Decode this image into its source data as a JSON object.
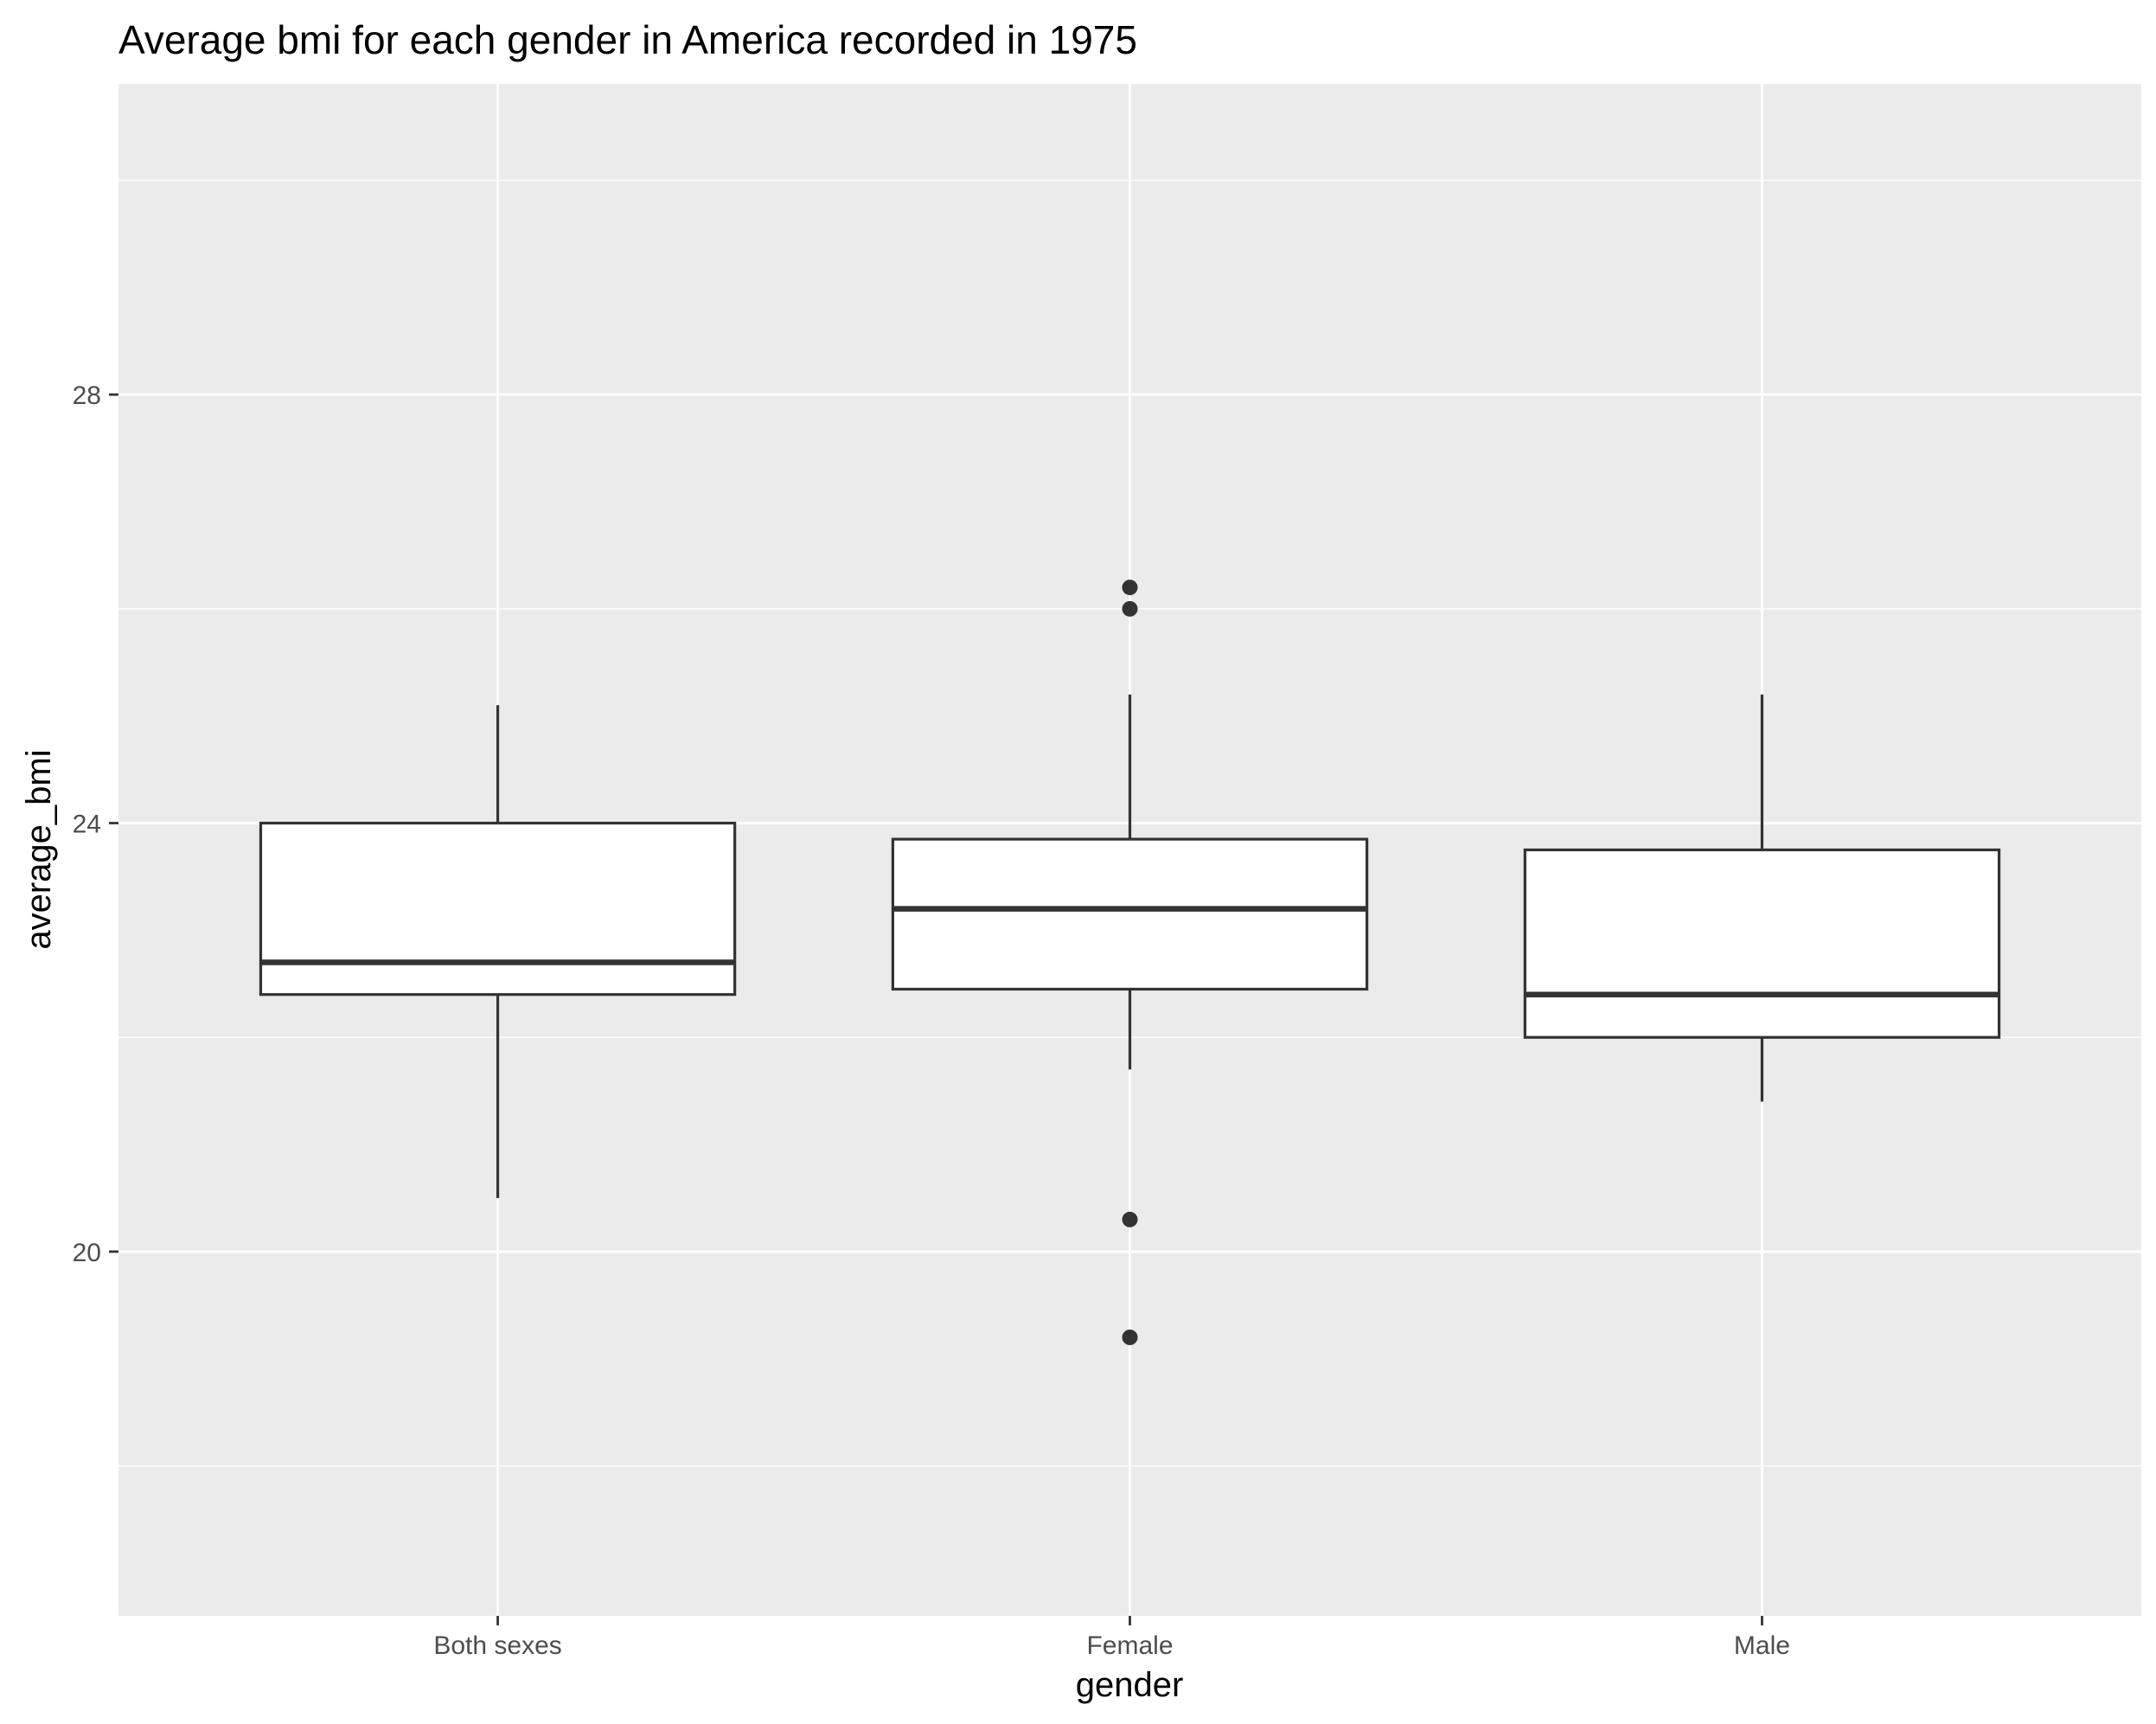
{
  "chart_data": {
    "type": "boxplot",
    "title": "Average bmi for each gender in America recorded in 1975",
    "xlabel": "gender",
    "ylabel": "average_bmi",
    "categories": [
      "Both sexes",
      "Female",
      "Male"
    ],
    "ylim": [
      16.6,
      30.9
    ],
    "yticks": [
      20,
      24,
      28
    ],
    "grid": true,
    "legend": "none",
    "boxes": [
      {
        "category": "Both sexes",
        "whisker_low": 20.5,
        "q1": 22.4,
        "median": 22.7,
        "q3": 24.0,
        "whisker_high": 25.1,
        "outliers": []
      },
      {
        "category": "Female",
        "whisker_low": 21.7,
        "q1": 22.45,
        "median": 23.2,
        "q3": 23.85,
        "whisker_high": 25.2,
        "outliers": [
          26.2,
          26.0,
          20.3,
          19.2
        ]
      },
      {
        "category": "Male",
        "whisker_low": 21.4,
        "q1": 22.0,
        "median": 22.4,
        "q3": 23.75,
        "whisker_high": 25.2,
        "outliers": []
      }
    ],
    "colors": {
      "panel": "#ebebeb",
      "grid": "#ffffff",
      "box_fill": "#ffffff",
      "box_line": "#333333",
      "tick": "#333333"
    }
  }
}
